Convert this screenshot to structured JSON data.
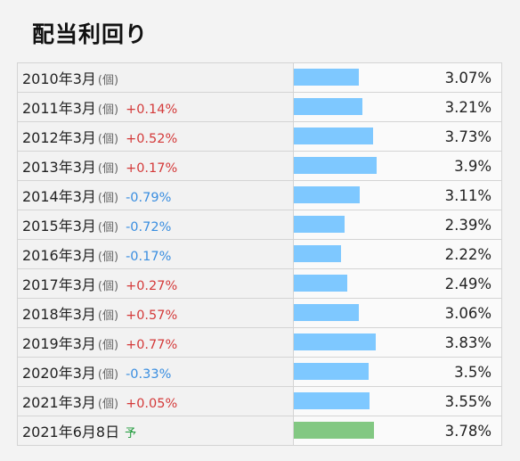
{
  "page": {
    "title": "配当利回り"
  },
  "colors": {
    "bar_actual": "#7ec8ff",
    "bar_forecast": "#82c882",
    "increase": "#d43a3a",
    "decrease": "#3a8ee0",
    "forecast_tag": "#1e9a3a"
  },
  "chart_data": {
    "type": "bar",
    "categories": [
      "2010年3月",
      "2011年3月",
      "2012年3月",
      "2013年3月",
      "2014年3月",
      "2015年3月",
      "2016年3月",
      "2017年3月",
      "2018年3月",
      "2019年3月",
      "2020年3月",
      "2021年3月",
      "2021年6月8日"
    ],
    "values": [
      3.07,
      3.21,
      3.73,
      3.9,
      3.11,
      2.39,
      2.22,
      2.49,
      3.06,
      3.83,
      3.5,
      3.55,
      3.78
    ],
    "ylim": [
      0,
      10
    ],
    "grid": false
  },
  "rows": [
    {
      "period": "2010年3月",
      "unit": "(個)",
      "change": "",
      "value": "3.07%",
      "yield": 3.07,
      "kind": "actual"
    },
    {
      "period": "2011年3月",
      "unit": "(個)",
      "change": "+0.14%",
      "value": "3.21%",
      "yield": 3.21,
      "kind": "actual"
    },
    {
      "period": "2012年3月",
      "unit": "(個)",
      "change": "+0.52%",
      "value": "3.73%",
      "yield": 3.73,
      "kind": "actual"
    },
    {
      "period": "2013年3月",
      "unit": "(個)",
      "change": "+0.17%",
      "value": "3.9%",
      "yield": 3.9,
      "kind": "actual"
    },
    {
      "period": "2014年3月",
      "unit": "(個)",
      "change": "-0.79%",
      "value": "3.11%",
      "yield": 3.11,
      "kind": "actual"
    },
    {
      "period": "2015年3月",
      "unit": "(個)",
      "change": "-0.72%",
      "value": "2.39%",
      "yield": 2.39,
      "kind": "actual"
    },
    {
      "period": "2016年3月",
      "unit": "(個)",
      "change": "-0.17%",
      "value": "2.22%",
      "yield": 2.22,
      "kind": "actual"
    },
    {
      "period": "2017年3月",
      "unit": "(個)",
      "change": "+0.27%",
      "value": "2.49%",
      "yield": 2.49,
      "kind": "actual"
    },
    {
      "period": "2018年3月",
      "unit": "(個)",
      "change": "+0.57%",
      "value": "3.06%",
      "yield": 3.06,
      "kind": "actual"
    },
    {
      "period": "2019年3月",
      "unit": "(個)",
      "change": "+0.77%",
      "value": "3.83%",
      "yield": 3.83,
      "kind": "actual"
    },
    {
      "period": "2020年3月",
      "unit": "(個)",
      "change": "-0.33%",
      "value": "3.5%",
      "yield": 3.5,
      "kind": "actual"
    },
    {
      "period": "2021年3月",
      "unit": "(個)",
      "change": "+0.05%",
      "value": "3.55%",
      "yield": 3.55,
      "kind": "actual"
    },
    {
      "period": "2021年6月8日",
      "unit": "",
      "change": "",
      "forecast_label": "予",
      "value": "3.78%",
      "yield": 3.78,
      "kind": "forecast"
    }
  ]
}
